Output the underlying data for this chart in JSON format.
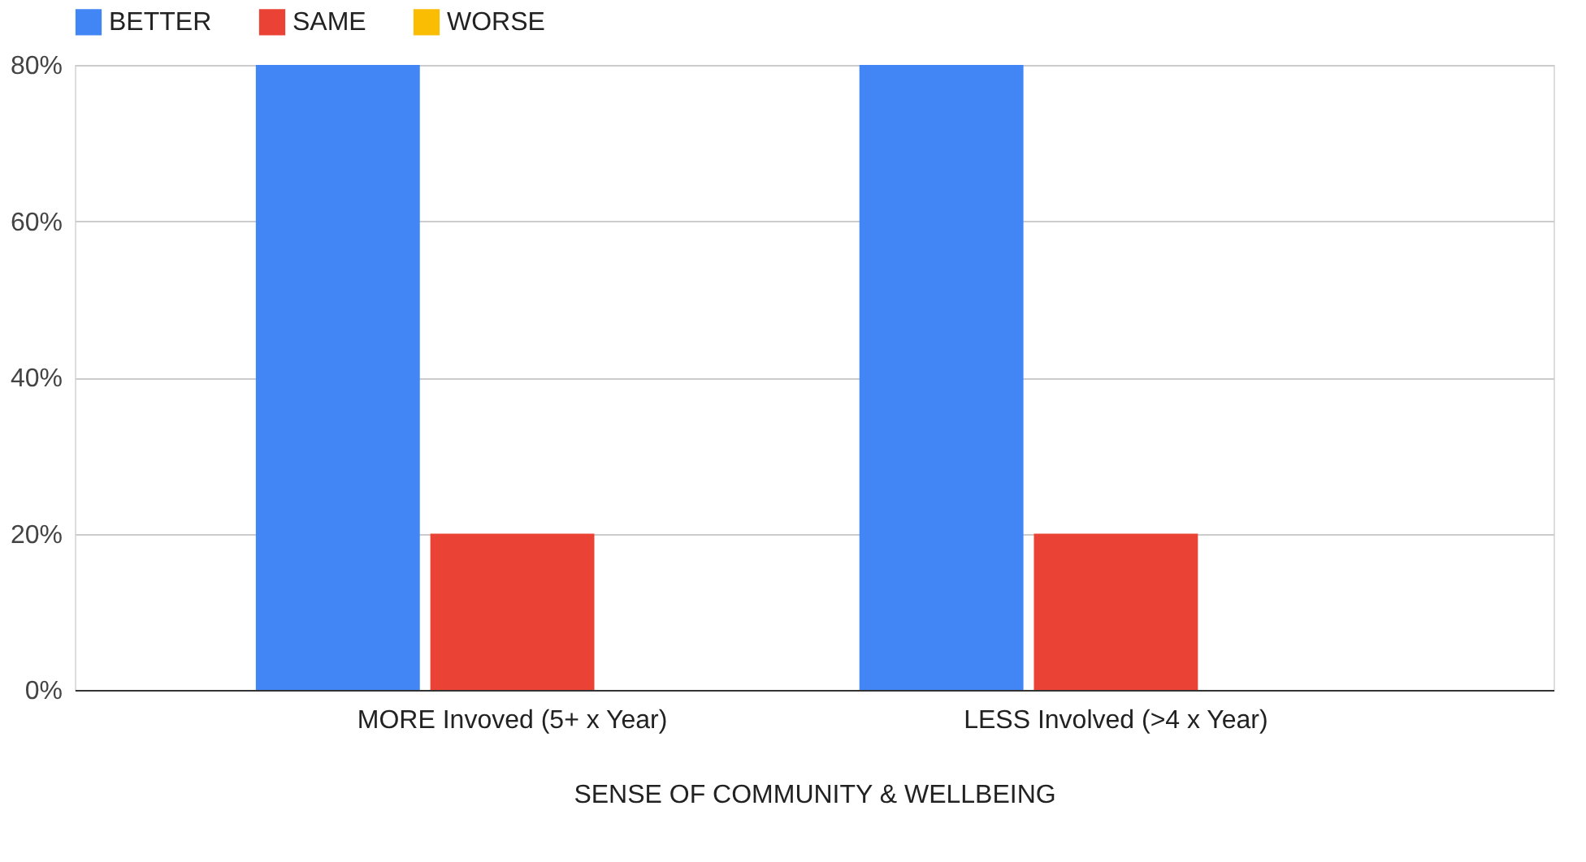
{
  "chart_data": {
    "type": "bar",
    "xlabel": "SENSE OF COMMUNITY & WELLBEING",
    "categories": [
      "MORE Invoved (5+ x Year)",
      "LESS Involved (>4 x Year)"
    ],
    "series": [
      {
        "name": "BETTER",
        "color": "#4285f4",
        "values": [
          80,
          80
        ]
      },
      {
        "name": "SAME",
        "color": "#ea4335",
        "values": [
          20,
          20
        ]
      },
      {
        "name": "WORSE",
        "color": "#fbbc04",
        "values": [
          0,
          0
        ]
      }
    ],
    "ylim": [
      0,
      80
    ],
    "yticks": [
      {
        "value": 0,
        "label": "0%"
      },
      {
        "value": 20,
        "label": "20%"
      },
      {
        "value": 40,
        "label": "40%"
      },
      {
        "value": 60,
        "label": "60%"
      },
      {
        "value": 80,
        "label": "80%"
      }
    ],
    "grid": "y",
    "legend": "top"
  }
}
